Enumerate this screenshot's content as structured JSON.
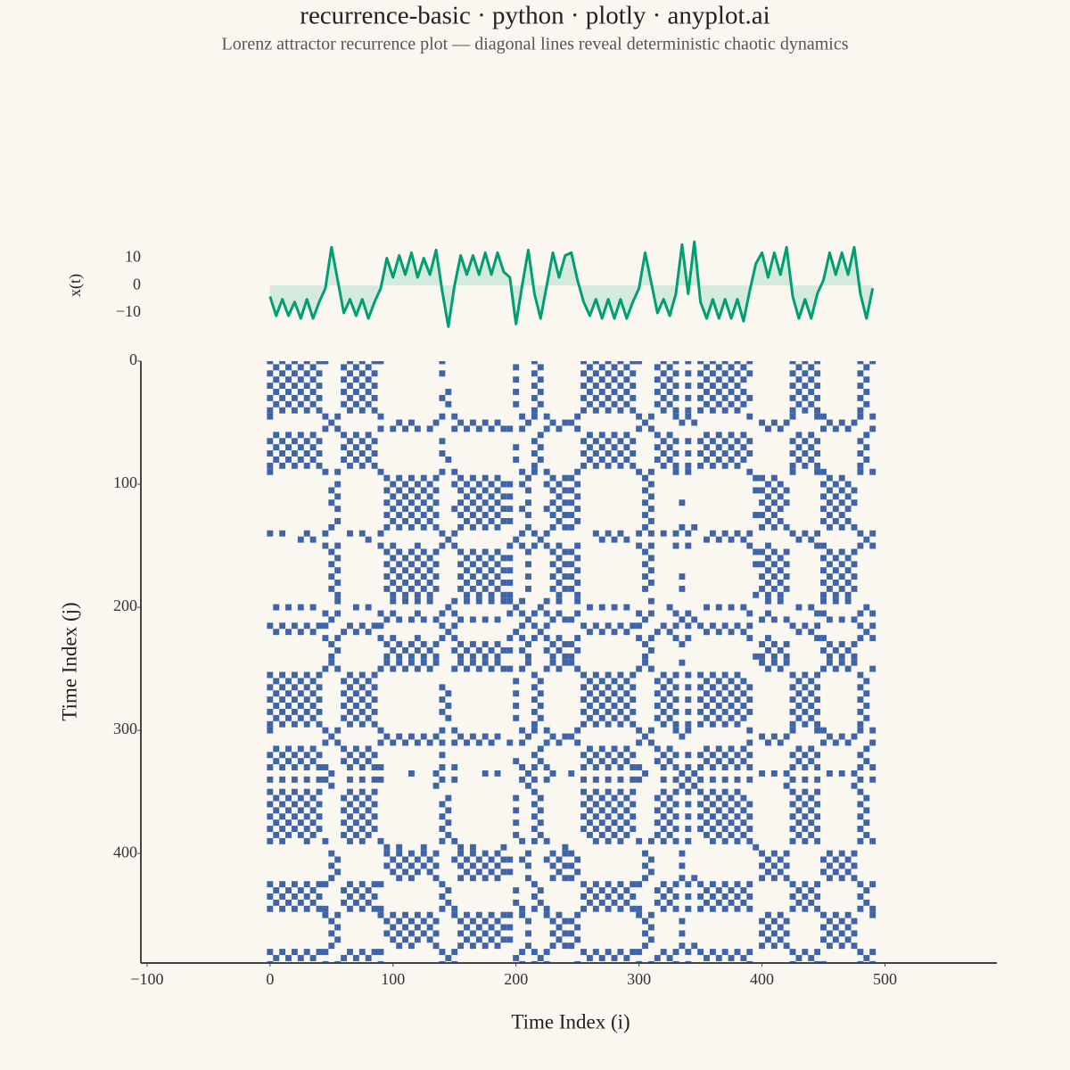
{
  "chart_data": {
    "type": "recurrence",
    "title": "recurrence-basic · python · plotly · anyplot.ai",
    "subtitle": "Lorenz attractor recurrence plot — diagonal lines reveal deterministic chaotic dynamics",
    "xlabel": "Time Index (i)",
    "ylabel": "Time Index (j)",
    "series_ylabel": "x(t)",
    "x": [
      0,
      5,
      10,
      15,
      20,
      25,
      30,
      35,
      40,
      45,
      50,
      55,
      60,
      65,
      70,
      75,
      80,
      85,
      90,
      95,
      100,
      105,
      110,
      115,
      120,
      125,
      130,
      135,
      140,
      145,
      150,
      155,
      160,
      165,
      170,
      175,
      180,
      185,
      190,
      195,
      200,
      205,
      210,
      215,
      220,
      225,
      230,
      235,
      240,
      245,
      250,
      255,
      260,
      265,
      270,
      275,
      280,
      285,
      290,
      295,
      300,
      305,
      310,
      315,
      320,
      325,
      330,
      335,
      340,
      345,
      350,
      355,
      360,
      365,
      370,
      375,
      380,
      385,
      390,
      395,
      400,
      405,
      410,
      415,
      420,
      425,
      430,
      435,
      440,
      445,
      450,
      455,
      460,
      465,
      470,
      475,
      480,
      485,
      490
    ],
    "series": [
      {
        "name": "x(t)",
        "color": "#009e73",
        "values": [
          -4,
          -11,
          -5,
          -11,
          -6,
          -12,
          -5,
          -12,
          -6,
          -1,
          14,
          2,
          -10,
          -5,
          -11,
          -5,
          -12,
          -6,
          -1,
          10,
          3,
          11,
          4,
          12,
          3,
          10,
          4,
          13,
          -2,
          -15,
          0,
          11,
          4,
          11,
          4,
          12,
          4,
          12,
          5,
          3,
          -14,
          0,
          13,
          -3,
          -12,
          0,
          12,
          3,
          11,
          12,
          2,
          -6,
          -11,
          -5,
          -12,
          -5,
          -12,
          -5,
          -12,
          -6,
          -1,
          12,
          1,
          -10,
          -5,
          -11,
          -3,
          15,
          -3,
          16,
          -6,
          -12,
          -5,
          -12,
          -5,
          -12,
          -5,
          -13,
          -2,
          8,
          12,
          3,
          12,
          4,
          14,
          -4,
          -12,
          -5,
          -12,
          -3,
          2,
          12,
          4,
          12,
          4,
          14,
          -3,
          -12,
          -1
        ]
      }
    ],
    "recurrence_color": "#3f64a8",
    "recurrence_threshold": 3,
    "xlim": [
      -105,
      591
    ],
    "xticks": [
      {
        "value": -100,
        "label": "−100"
      },
      0,
      100,
      200,
      300,
      400,
      500
    ],
    "ylim": [
      0,
      489
    ],
    "yticks": [
      0,
      100,
      200,
      300,
      400
    ],
    "series_ylim": [
      -17.5,
      18
    ],
    "series_yticks": [
      10,
      0,
      {
        "value": -10,
        "label": "−10"
      }
    ]
  }
}
